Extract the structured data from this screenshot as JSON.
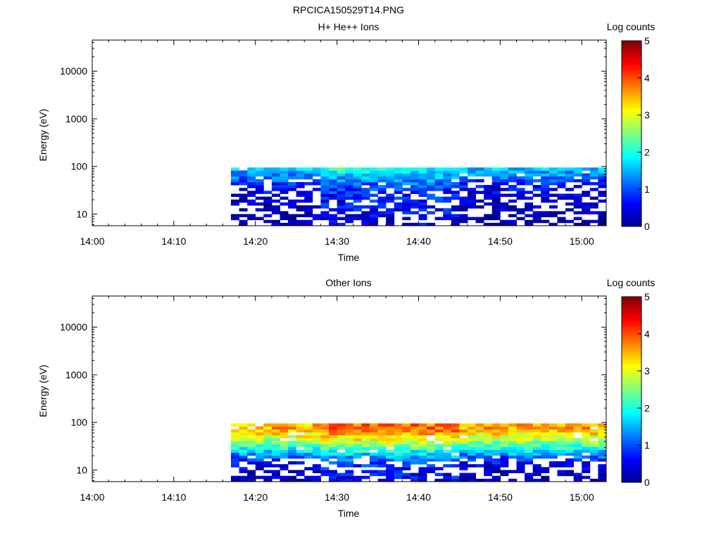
{
  "figure_title": "RPCICA150529T14.PNG",
  "colors": {
    "colormap": [
      "#00008f",
      "#0000ff",
      "#007fff",
      "#00ffff",
      "#7fff7f",
      "#ffff00",
      "#ff7f00",
      "#ff0000",
      "#7f0000"
    ]
  },
  "chart_data": [
    {
      "type": "heatmap",
      "title": "H+ He++ Ions",
      "xlabel": "Time",
      "ylabel": "Energy (eV)",
      "x_ticks": [
        "14:00",
        "14:10",
        "14:20",
        "14:30",
        "14:40",
        "14:50",
        "15:00"
      ],
      "x_range": [
        "14:00",
        "15:03"
      ],
      "y_ticks": [
        "10",
        "100",
        "1000",
        "10000"
      ],
      "y_scale": "log",
      "y_range": [
        5.7,
        45000
      ],
      "data_time_range": [
        "14:17",
        "15:03"
      ],
      "data_energy_range": [
        5.7,
        95
      ],
      "colorbar": {
        "label": "Log counts",
        "range": [
          0,
          5
        ],
        "ticks": [
          "0",
          "1",
          "2",
          "3",
          "4",
          "5"
        ]
      },
      "log_counts_profile": {
        "energy_eV": [
          95,
          80,
          65,
          50,
          38,
          28,
          20,
          14,
          10,
          7
        ],
        "mean_log_counts": [
          1.7,
          1.5,
          1.2,
          0.9,
          0.6,
          0.4,
          0.3,
          0.2,
          0.15,
          0.1
        ]
      }
    },
    {
      "type": "heatmap",
      "title": "Other Ions",
      "xlabel": "Time",
      "ylabel": "Energy (eV)",
      "x_ticks": [
        "14:00",
        "14:10",
        "14:20",
        "14:30",
        "14:40",
        "14:50",
        "15:00"
      ],
      "x_range": [
        "14:00",
        "15:03"
      ],
      "y_ticks": [
        "10",
        "100",
        "1000",
        "10000"
      ],
      "y_scale": "log",
      "y_range": [
        5.7,
        45000
      ],
      "data_time_range": [
        "14:17",
        "15:03"
      ],
      "data_energy_range": [
        5.7,
        95
      ],
      "colorbar": {
        "label": "Log counts",
        "range": [
          0,
          5
        ],
        "ticks": [
          "0",
          "1",
          "2",
          "3",
          "4",
          "5"
        ]
      },
      "log_counts_profile": {
        "energy_eV": [
          95,
          80,
          65,
          50,
          38,
          28,
          20,
          14,
          10,
          7
        ],
        "mean_log_counts": [
          3.4,
          3.6,
          3.4,
          3.0,
          2.5,
          1.9,
          1.2,
          0.5,
          0.3,
          0.2
        ]
      }
    }
  ]
}
